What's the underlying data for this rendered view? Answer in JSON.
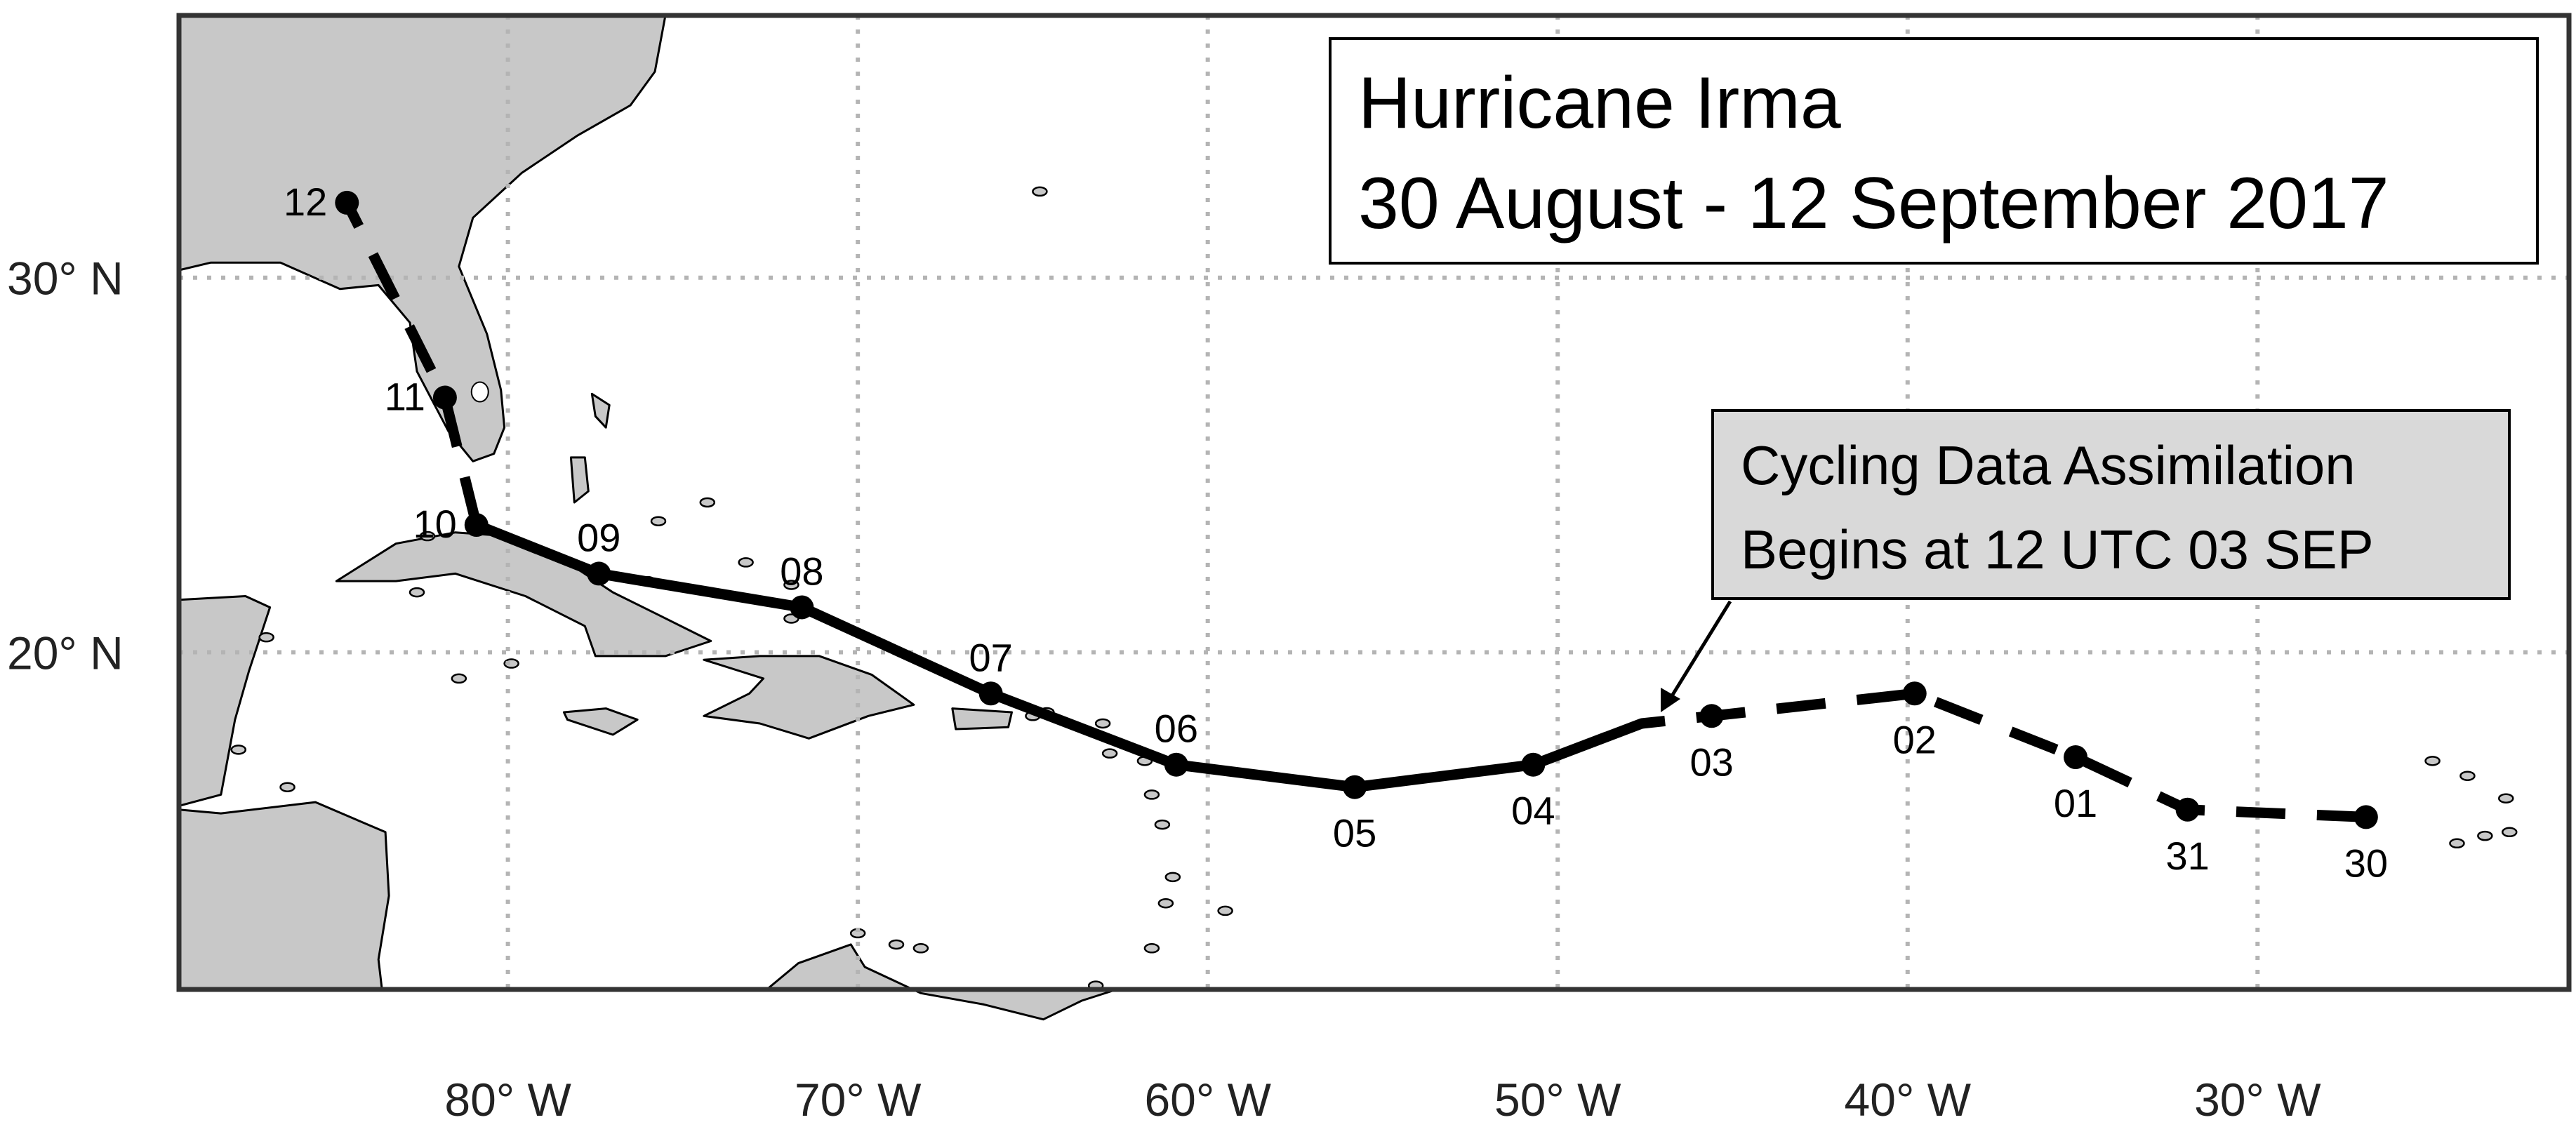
{
  "title": {
    "line1": "Hurricane Irma",
    "line2": "30 August - 12 September 2017"
  },
  "annotation": {
    "line1": "Cycling Data Assimilation",
    "line2": "Begins at 12 UTC 03 SEP",
    "box_color": "#d9d9d9"
  },
  "axes": {
    "lon_ticks": [
      {
        "value": -80,
        "label": "80° W"
      },
      {
        "value": -70,
        "label": "70° W"
      },
      {
        "value": -60,
        "label": "60° W"
      },
      {
        "value": -50,
        "label": "50° W"
      },
      {
        "value": -40,
        "label": "40° W"
      },
      {
        "value": -30,
        "label": "30° W"
      }
    ],
    "lat_ticks": [
      {
        "value": 30,
        "label": "30° N"
      },
      {
        "value": 20,
        "label": "20° N"
      }
    ],
    "lon_range": [
      -89.4,
      -21.1
    ],
    "lat_range": [
      11.0,
      37.0
    ],
    "grid": "dotted"
  },
  "colors": {
    "land": "#c8c8c8",
    "ocean": "#ffffff",
    "track": "#000000",
    "grid": "#b4b4b4"
  },
  "track": {
    "points": [
      {
        "day": "30",
        "lon": -26.9,
        "lat": 15.6
      },
      {
        "day": "31",
        "lon": -32.0,
        "lat": 15.8
      },
      {
        "day": "01",
        "lon": -35.2,
        "lat": 17.2
      },
      {
        "day": "02",
        "lon": -39.8,
        "lat": 18.9
      },
      {
        "day": "03",
        "lon": -45.6,
        "lat": 18.3
      },
      {
        "day": "04",
        "lon": -50.7,
        "lat": 17.0
      },
      {
        "day": "05",
        "lon": -55.8,
        "lat": 16.4
      },
      {
        "day": "06",
        "lon": -60.9,
        "lat": 17.0
      },
      {
        "day": "07",
        "lon": -66.2,
        "lat": 18.9
      },
      {
        "day": "08",
        "lon": -71.6,
        "lat": 21.2
      },
      {
        "day": "09",
        "lon": -77.4,
        "lat": 22.1
      },
      {
        "day": "10",
        "lon": -80.9,
        "lat": 23.4
      },
      {
        "day": "11",
        "lon": -81.8,
        "lat": 26.8
      },
      {
        "day": "12",
        "lon": -84.6,
        "lat": 32.0
      }
    ],
    "assimilation_start": {
      "lon": -47.6,
      "lat": 18.1
    }
  }
}
